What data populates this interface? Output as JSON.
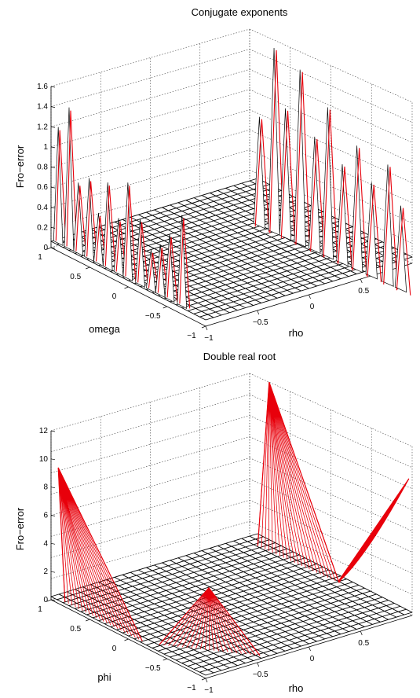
{
  "chart_data": [
    {
      "type": "surface",
      "title": "Conjugate exponents",
      "xlabel": "omega",
      "ylabel": "rho",
      "zlabel": "Fro−error",
      "xlim": [
        -1,
        1
      ],
      "ylim": [
        -1,
        1
      ],
      "zlim": [
        0,
        1.6
      ],
      "x_ticks": [
        "1",
        "0.5",
        "0",
        "−0.5",
        "−1"
      ],
      "y_ticks": [
        "−1",
        "−0.5",
        "0",
        "0.5"
      ],
      "z_ticks": [
        "0",
        "0.2",
        "0.4",
        "0.6",
        "0.8",
        "1",
        "1.2",
        "1.4",
        "1.6"
      ],
      "grid": true,
      "colors": {
        "surface": "#000000",
        "highlight": "#e8000b"
      },
      "peaks_left": [
        {
          "u": 0.02,
          "z": 1.2
        },
        {
          "u": 0.09,
          "z": 1.45
        },
        {
          "u": 0.15,
          "z": 0.75
        },
        {
          "u": 0.22,
          "z": 0.85
        },
        {
          "u": 0.28,
          "z": 0.55
        },
        {
          "u": 0.34,
          "z": 0.9
        },
        {
          "u": 0.41,
          "z": 0.6
        },
        {
          "u": 0.47,
          "z": 1.0
        },
        {
          "u": 0.55,
          "z": 0.7
        },
        {
          "u": 0.62,
          "z": 0.45
        },
        {
          "u": 0.68,
          "z": 0.55
        },
        {
          "u": 0.74,
          "z": 0.7
        },
        {
          "u": 0.82,
          "z": 0.95
        }
      ],
      "peaks_right": [
        {
          "u": 0.06,
          "z": 0.85
        },
        {
          "u": 0.15,
          "z": 1.6
        },
        {
          "u": 0.22,
          "z": 1.05
        },
        {
          "u": 0.31,
          "z": 1.5
        },
        {
          "u": 0.4,
          "z": 0.9
        },
        {
          "u": 0.48,
          "z": 1.25
        },
        {
          "u": 0.57,
          "z": 0.75
        },
        {
          "u": 0.66,
          "z": 1.0
        },
        {
          "u": 0.75,
          "z": 0.7
        },
        {
          "u": 0.85,
          "z": 0.95
        },
        {
          "u": 0.93,
          "z": 0.6
        }
      ]
    },
    {
      "type": "surface",
      "title": "Double real root",
      "xlabel": "phi",
      "ylabel": "rho",
      "zlabel": "Fro−error",
      "xlim": [
        -1,
        1
      ],
      "ylim": [
        -1,
        1
      ],
      "zlim": [
        0,
        12
      ],
      "x_ticks": [
        "1",
        "0.5",
        "0",
        "−0.5",
        "−1"
      ],
      "y_ticks": [
        "−1",
        "−0.5",
        "0",
        "0.5"
      ],
      "z_ticks": [
        "0",
        "2",
        "4",
        "6",
        "8",
        "10",
        "12"
      ],
      "grid": true,
      "colors": {
        "surface": "#000000",
        "highlight": "#e8000b"
      },
      "corner_peaks": {
        "back_left": 9.4,
        "center_front": 4.4,
        "back_right": 12.0,
        "right": 9.6
      }
    }
  ]
}
